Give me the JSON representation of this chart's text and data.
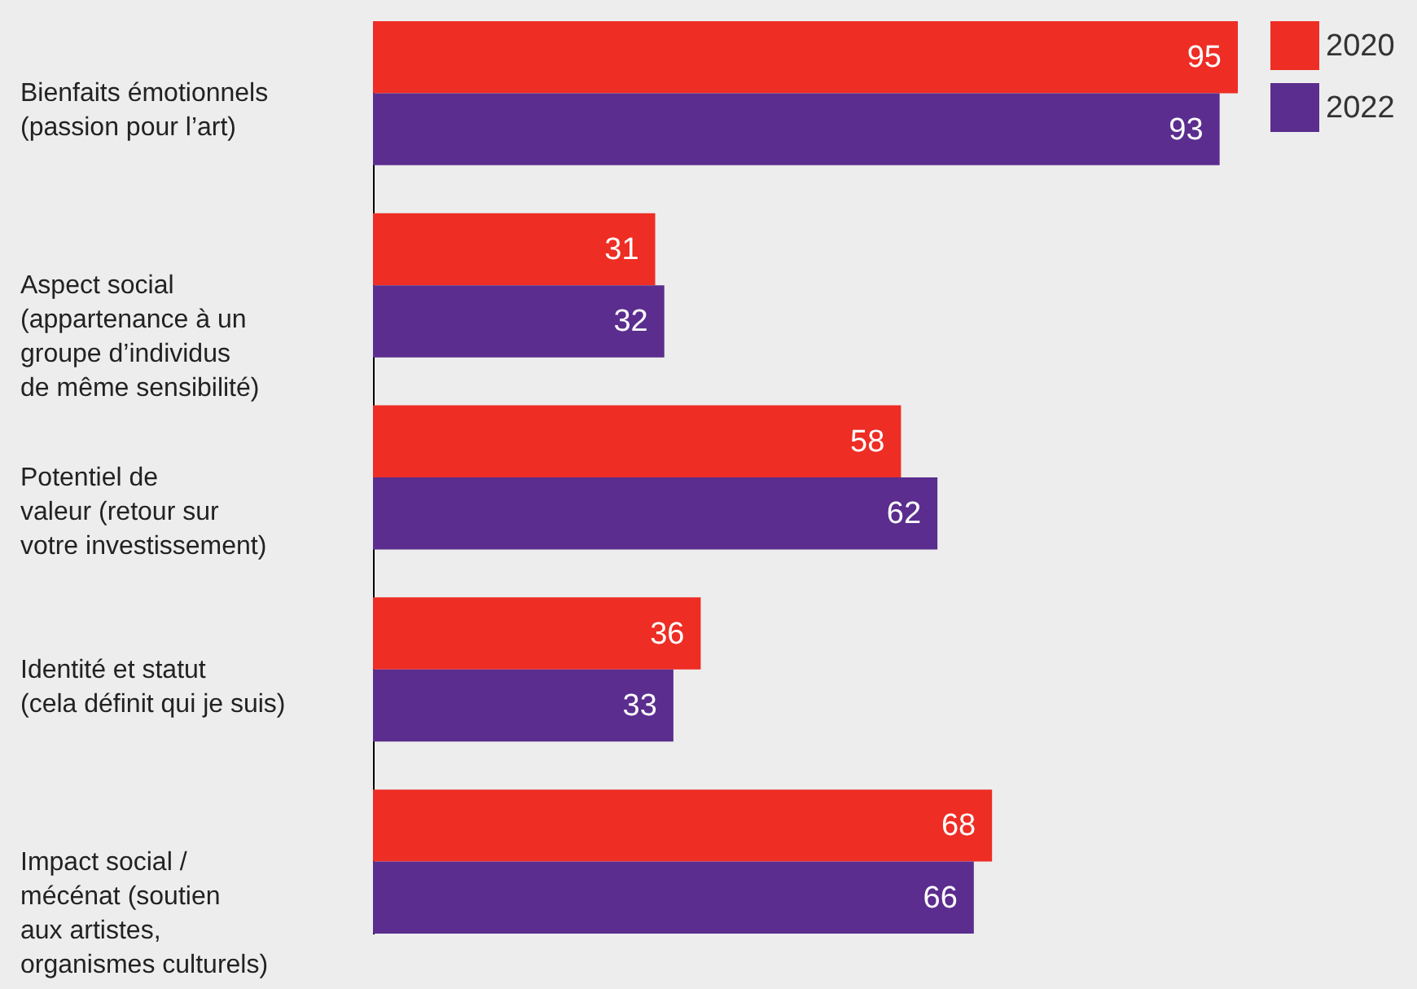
{
  "chart_data": {
    "type": "bar",
    "orientation": "horizontal",
    "categories": [
      "Bienfaits émotionnels\n(passion pour l’art)",
      "Aspect social\n(appartenance à un\ngroupe d’individus\nde même sensibilité)",
      "Potentiel de\nvaleur (retour sur\nvotre investissement)",
      "Identité et statut\n(cela définit qui je suis)",
      "Impact social /\nmécénat (soutien\naux artistes,\norganismes culturels)"
    ],
    "series": [
      {
        "name": "2020",
        "color": "#ee2d24",
        "values": [
          95,
          31,
          58,
          36,
          68
        ]
      },
      {
        "name": "2022",
        "color": "#5b2d8e",
        "values": [
          93,
          32,
          62,
          33,
          66
        ]
      }
    ],
    "data_labels": true,
    "legend": "top right"
  }
}
